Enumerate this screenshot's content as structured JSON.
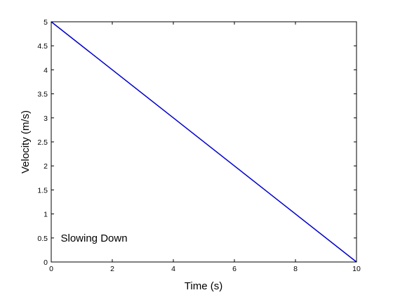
{
  "chart_data": {
    "type": "line",
    "title": "",
    "xlabel": "Time (s)",
    "ylabel": "Velocity (m/s)",
    "xlim": [
      0,
      10
    ],
    "ylim": [
      0,
      5
    ],
    "grid": false,
    "x_ticks": [
      "0",
      "2",
      "4",
      "6",
      "8",
      "10"
    ],
    "y_ticks": [
      "0",
      "0.5",
      "1",
      "1.5",
      "2",
      "2.5",
      "3",
      "3.5",
      "4",
      "4.5",
      "5"
    ],
    "series": [
      {
        "x": [
          0,
          10
        ],
        "y": [
          5,
          0
        ],
        "color": "#0000cc"
      }
    ],
    "annotations": [
      {
        "text": "Slowing Down",
        "x": 1,
        "y": 0.5
      }
    ]
  }
}
